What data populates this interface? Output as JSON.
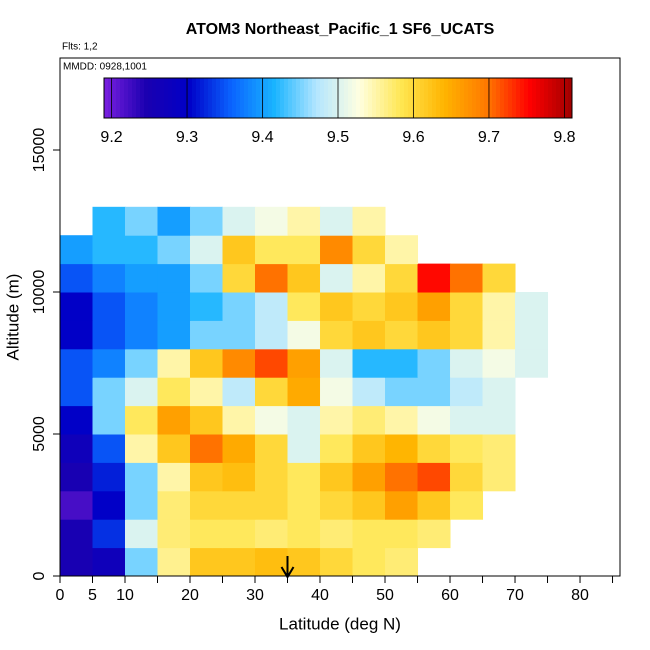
{
  "chart_data": {
    "type": "heatmap",
    "title": "ATOM3 Northeast_Pacific_1 SF6_UCATS",
    "subtitle": "Flts: 1,2",
    "annotation": "MMDD: 0928,1001",
    "xlabel": "Latitude (deg N)",
    "ylabel": "Altitude (m)",
    "xlim": [
      0,
      86.15
    ],
    "ylim": [
      0,
      18240
    ],
    "xticks": [
      0,
      5,
      10,
      20,
      30,
      40,
      50,
      60,
      70,
      80
    ],
    "xminor_ticks": [
      15,
      25,
      35,
      45,
      55,
      65,
      75,
      85
    ],
    "yticks": [
      0,
      5000,
      10000,
      15000
    ],
    "x_bins": [
      0,
      5,
      10,
      15,
      20,
      25,
      30,
      35,
      40,
      45,
      50,
      55,
      60,
      65,
      70,
      75
    ],
    "y_bins": [
      0,
      1000,
      2000,
      3000,
      4000,
      5000,
      6000,
      7000,
      8000,
      9000,
      10000,
      11000,
      12000,
      13000
    ],
    "values": [
      [
        9.25,
        9.27,
        9.45,
        9.56,
        9.62,
        9.62,
        9.63,
        9.62,
        9.6,
        9.58,
        9.57,
        null,
        null,
        null,
        null
      ],
      [
        9.25,
        9.33,
        9.5,
        9.57,
        9.58,
        9.58,
        9.57,
        9.58,
        9.57,
        9.58,
        9.58,
        9.57,
        null,
        null,
        null
      ],
      [
        9.22,
        9.3,
        9.45,
        9.57,
        9.6,
        9.6,
        9.6,
        9.58,
        9.6,
        9.62,
        9.66,
        9.62,
        9.58,
        null,
        null
      ],
      [
        9.25,
        9.32,
        9.45,
        9.55,
        9.62,
        9.63,
        9.6,
        9.58,
        9.62,
        9.66,
        9.7,
        9.72,
        9.6,
        9.57,
        null
      ],
      [
        9.27,
        9.35,
        9.55,
        9.62,
        9.7,
        9.65,
        9.6,
        9.5,
        9.58,
        9.62,
        9.64,
        9.6,
        9.58,
        9.57,
        null
      ],
      [
        9.3,
        9.45,
        9.58,
        9.66,
        9.62,
        9.55,
        9.52,
        9.5,
        9.55,
        9.57,
        9.55,
        9.52,
        9.5,
        9.5,
        null
      ],
      [
        9.35,
        9.45,
        9.5,
        9.58,
        9.55,
        9.48,
        9.6,
        9.65,
        9.52,
        9.48,
        9.45,
        9.45,
        9.48,
        9.5,
        null
      ],
      [
        9.35,
        9.38,
        9.45,
        9.55,
        9.62,
        9.68,
        9.72,
        9.66,
        9.5,
        9.42,
        9.42,
        9.45,
        9.5,
        9.52,
        9.5
      ],
      [
        9.3,
        9.35,
        9.38,
        9.4,
        9.45,
        9.45,
        9.48,
        9.52,
        9.6,
        9.62,
        9.6,
        9.62,
        9.6,
        9.55,
        9.5
      ],
      [
        9.3,
        9.35,
        9.38,
        9.4,
        9.42,
        9.45,
        9.48,
        9.58,
        9.62,
        9.6,
        9.62,
        9.66,
        9.6,
        9.55,
        9.5
      ],
      [
        9.35,
        9.38,
        9.4,
        9.4,
        9.45,
        9.6,
        9.7,
        9.62,
        9.5,
        9.55,
        9.6,
        9.75,
        9.7,
        9.6,
        null
      ],
      [
        9.4,
        9.42,
        9.42,
        9.45,
        9.5,
        9.62,
        9.58,
        9.58,
        9.68,
        9.6,
        9.55,
        null,
        null,
        null,
        null
      ],
      [
        null,
        9.42,
        9.45,
        9.4,
        9.45,
        9.5,
        9.52,
        9.55,
        9.5,
        9.55,
        null,
        null,
        null,
        null,
        null
      ]
    ],
    "clim": [
      9.19,
      9.81
    ],
    "colorbar_ticks": [
      9.2,
      9.3,
      9.4,
      9.5,
      9.6,
      9.7,
      9.8
    ],
    "colorscale": [
      "#7b1fe0",
      "#1a00b0",
      "#0000c8",
      "#0a64ff",
      "#19b4ff",
      "#b4e6ff",
      "#ffffe0",
      "#ffe650",
      "#ffb400",
      "#ff7800",
      "#ff0000",
      "#a00000"
    ]
  }
}
